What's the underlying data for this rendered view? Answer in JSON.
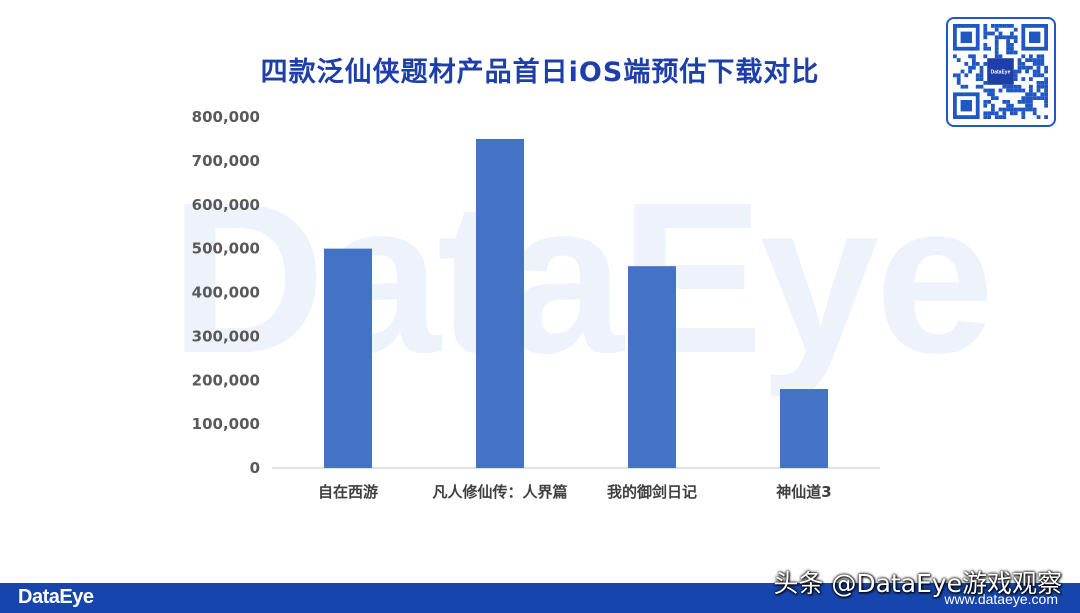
{
  "watermark_text": "DataEye",
  "qr_logo_text": "DataEye",
  "footer": {
    "logo": "DataEye",
    "site": "www.dataeye.com"
  },
  "credit": "头条 @DataEye游戏观察",
  "colors": {
    "title": "#1f3fa8",
    "bar": "#4472c4",
    "footer": "#1646ad"
  },
  "chart_data": {
    "type": "bar",
    "title": "四款泛仙侠题材产品首日iOS端预估下载对比",
    "xlabel": "",
    "ylabel": "",
    "categories": [
      "自在西游",
      "凡人修仙传：人界篇",
      "我的御剑日记",
      "神仙道3"
    ],
    "values": [
      500000,
      750000,
      460000,
      180000
    ],
    "ylim": [
      0,
      800000
    ],
    "yticks": [
      0,
      100000,
      200000,
      300000,
      400000,
      500000,
      600000,
      700000,
      800000
    ],
    "ytick_labels": [
      "0",
      "100,000",
      "200,000",
      "300,000",
      "400,000",
      "500,000",
      "600,000",
      "700,000",
      "800,000"
    ],
    "grid": false,
    "legend": "none"
  }
}
